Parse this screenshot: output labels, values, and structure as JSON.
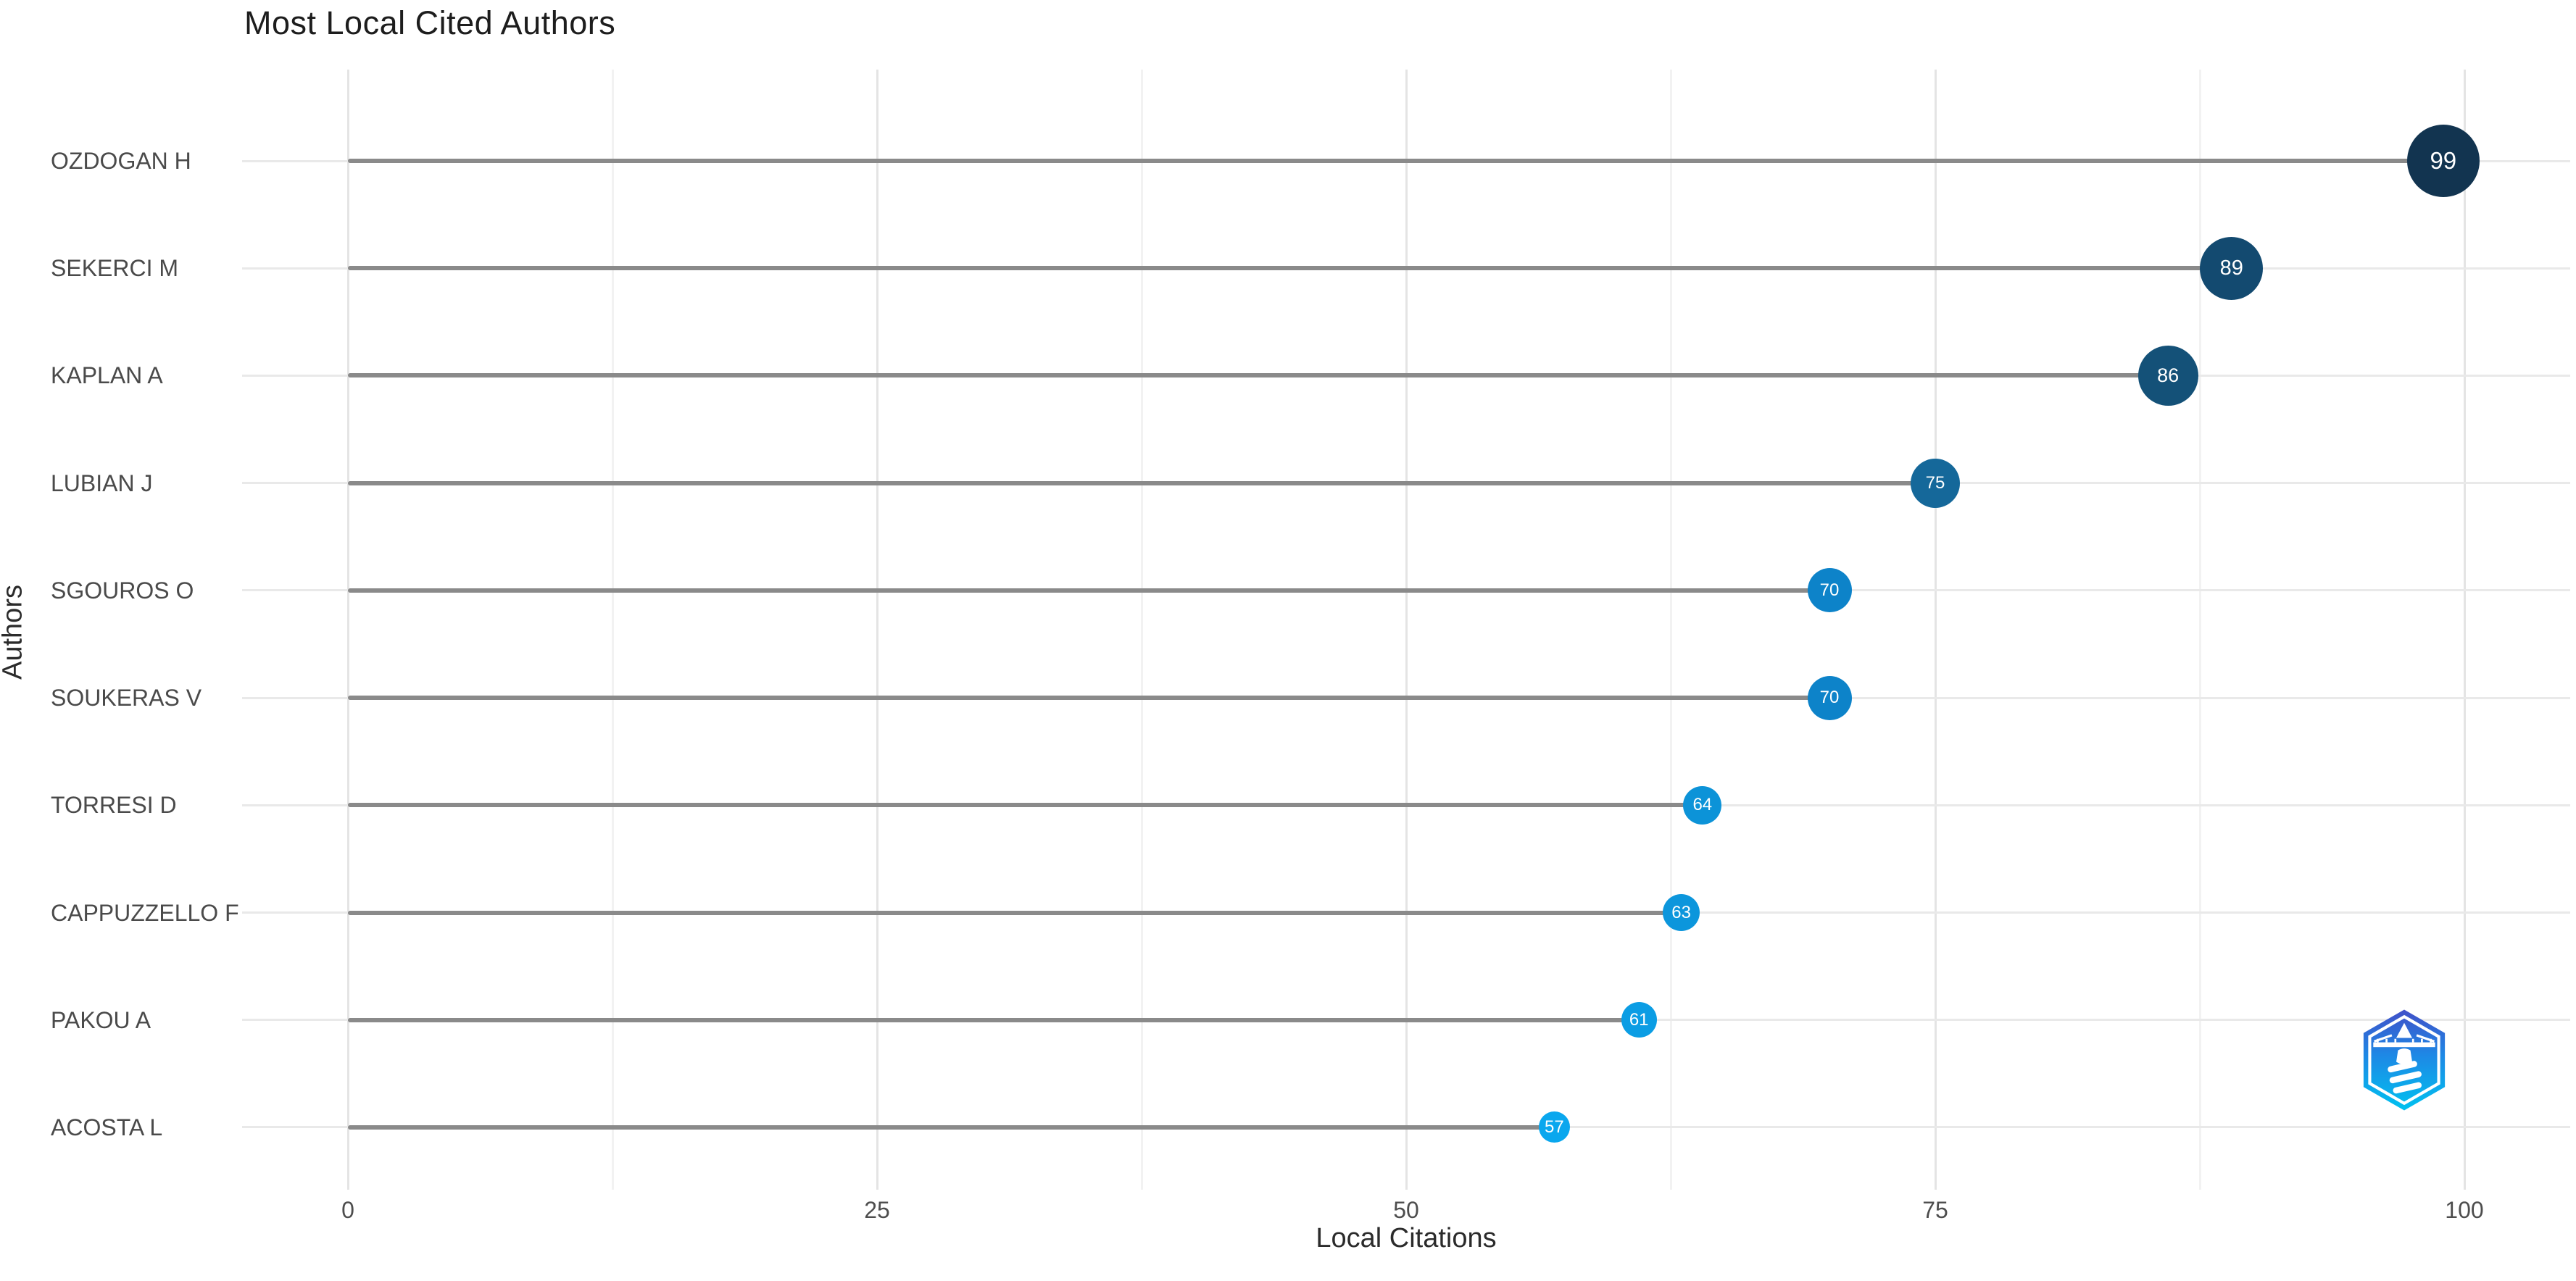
{
  "title": "Most Local Cited Authors",
  "chart_data": {
    "type": "scatter",
    "variant": "lollipop",
    "title": "Most Local Cited Authors",
    "xlabel": "Local Citations",
    "ylabel": "Authors",
    "categories": [
      "OZDOGAN H",
      "SEKERCI M",
      "KAPLAN A",
      "LUBIAN J",
      "SGOUROS O",
      "SOUKERAS V",
      "TORRESI D",
      "CAPPUZZELLO F",
      "PAKOU A",
      "ACOSTA L"
    ],
    "values": [
      99,
      89,
      86,
      75,
      70,
      70,
      64,
      63,
      61,
      57
    ],
    "point_colors": [
      "#123450",
      "#134a70",
      "#145178",
      "#15689a",
      "#0d83c9",
      "#0d83c9",
      "#0c93d8",
      "#0c96dc",
      "#0b9de4",
      "#0aa7ee"
    ],
    "point_label_color": "#ffffff",
    "stem_color": "#8a8a8a",
    "x_ticks": [
      0,
      25,
      50,
      75,
      100
    ],
    "x_minor_ticks": [
      12.5,
      37.5,
      62.5,
      87.5
    ],
    "xlim": [
      -5,
      105
    ],
    "grid": true,
    "legend": false,
    "size_encodes": "value",
    "color_encodes": "value (light blue = low, dark navy = high)"
  },
  "logo": {
    "name": "biblioshiny-lighthouse-logo",
    "gradient_top": "#4150c8",
    "gradient_mid": "#1e88e5",
    "gradient_bottom": "#00c2f0"
  }
}
